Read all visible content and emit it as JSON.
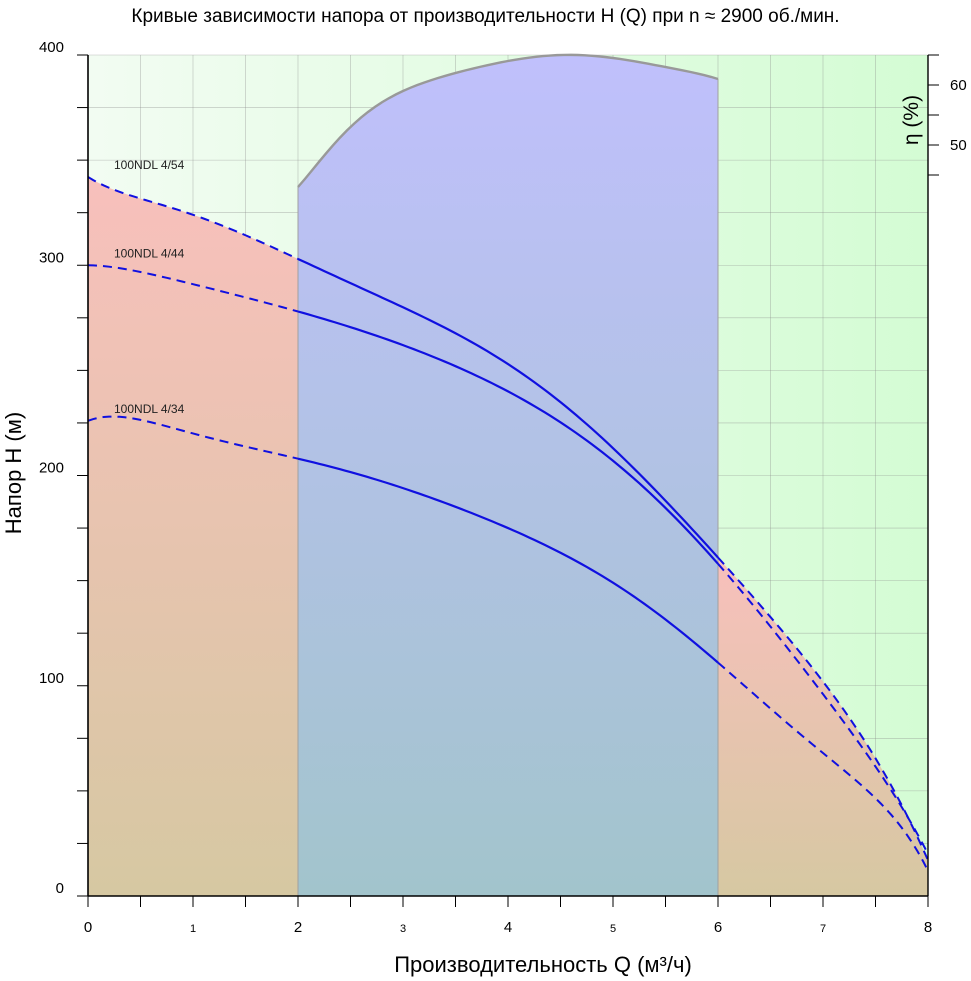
{
  "chart_data": {
    "type": "line",
    "title": "Кривые зависимости напора от производительности H (Q) при n ≈ 2900 об./мин.",
    "xlabel": "Производительность Q (м³/ч)",
    "ylabel": "Напор H (м)",
    "xlim": [
      0,
      8
    ],
    "ylim": [
      0,
      400
    ],
    "x_ticks": [
      0,
      1,
      2,
      3,
      4,
      5,
      6,
      7,
      8
    ],
    "x_tick_labels": [
      "0",
      "1",
      "2",
      "3",
      "4",
      "5",
      "6",
      "7",
      "8"
    ],
    "y_ticks": [
      0,
      100,
      200,
      300,
      400
    ],
    "y_tick_labels": [
      "0",
      "100",
      "200",
      "300",
      "400"
    ],
    "grid": true,
    "working_range": [
      2,
      6
    ],
    "series": [
      {
        "name": "100NDL 4/54",
        "color": "#1010e0",
        "x": [
          0,
          1,
          2,
          3,
          4,
          5,
          6,
          7,
          8
        ],
        "y": [
          342,
          324,
          303,
          280,
          253,
          213,
          161,
          102,
          17
        ]
      },
      {
        "name": "100NDL 4/44",
        "color": "#1010e0",
        "x": [
          0,
          1,
          2,
          3,
          4,
          5,
          6,
          7,
          8
        ],
        "y": [
          300,
          291,
          278,
          262,
          240,
          207,
          158,
          96,
          20
        ]
      },
      {
        "name": "100NDL 4/34",
        "color": "#1010e0",
        "x": [
          0,
          1,
          2,
          3,
          4,
          5,
          6,
          7,
          8
        ],
        "y": [
          226,
          220,
          208,
          194,
          175,
          149,
          111,
          68,
          12
        ]
      }
    ],
    "efficiency": {
      "label": "η (%)",
      "ticks": [
        "60",
        "50"
      ],
      "x": [
        2,
        2.5,
        3,
        3.5,
        4,
        4.5,
        5,
        5.5,
        6
      ],
      "eta": [
        43,
        53,
        59,
        62,
        64,
        65,
        64.5,
        63,
        61
      ]
    },
    "colors": {
      "low_region": "#f4bcb4",
      "mid_region": "#bcc0fa",
      "high_region": "#d6fad6",
      "efficiency_line": "#999999"
    }
  }
}
